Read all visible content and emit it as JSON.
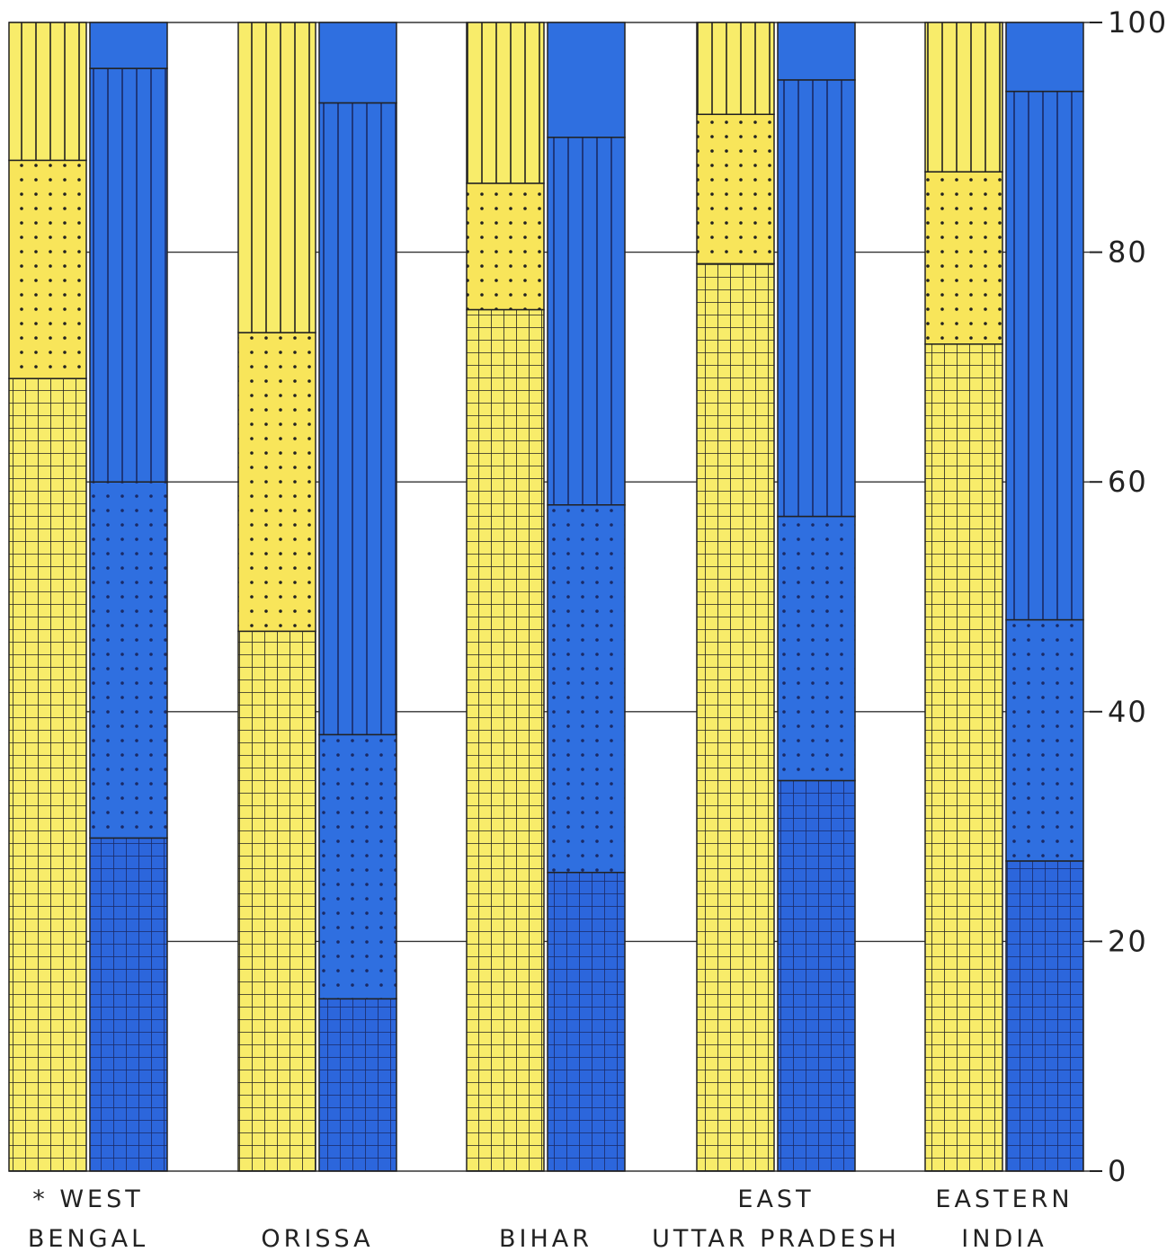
{
  "chart_data": {
    "type": "bar",
    "stacked": true,
    "ylim": [
      0,
      100
    ],
    "yticks": [
      {
        "value": 0,
        "label": "0"
      },
      {
        "value": 20,
        "label": "20"
      },
      {
        "value": 40,
        "label": "40"
      },
      {
        "value": 60,
        "label": "60"
      },
      {
        "value": 80,
        "label": "80"
      },
      {
        "value": 100,
        "label": "100"
      }
    ],
    "tick_side": "right",
    "grid": true,
    "patterns_bottom_to_top": [
      "grid",
      "dots",
      "vertical-lines",
      "plain"
    ],
    "colors": {
      "yellow": "#f8ec6a",
      "blue": "#2f6fe0"
    },
    "categories": [
      {
        "name": "west-bengal",
        "label_lines": [
          "* WEST",
          "BENGAL"
        ],
        "yellow": [
          69,
          19,
          12,
          0
        ],
        "blue": [
          29,
          31,
          36,
          4
        ]
      },
      {
        "name": "orissa",
        "label_lines": [
          "ORISSA"
        ],
        "yellow": [
          47,
          26,
          27,
          0
        ],
        "blue": [
          15,
          23,
          55,
          7
        ]
      },
      {
        "name": "bihar",
        "label_lines": [
          "BIHAR"
        ],
        "yellow": [
          75,
          11,
          14,
          0
        ],
        "blue": [
          26,
          32,
          32,
          10
        ]
      },
      {
        "name": "east-uttar-pradesh",
        "label_lines": [
          "EAST",
          "UTTAR PRADESH"
        ],
        "yellow": [
          79,
          13,
          8,
          0
        ],
        "blue": [
          34,
          23,
          38,
          5
        ]
      },
      {
        "name": "eastern-india",
        "label_lines": [
          "EASTERN",
          "INDIA"
        ],
        "yellow": [
          72,
          15,
          13,
          0
        ],
        "blue": [
          27,
          21,
          46,
          6
        ]
      }
    ]
  }
}
